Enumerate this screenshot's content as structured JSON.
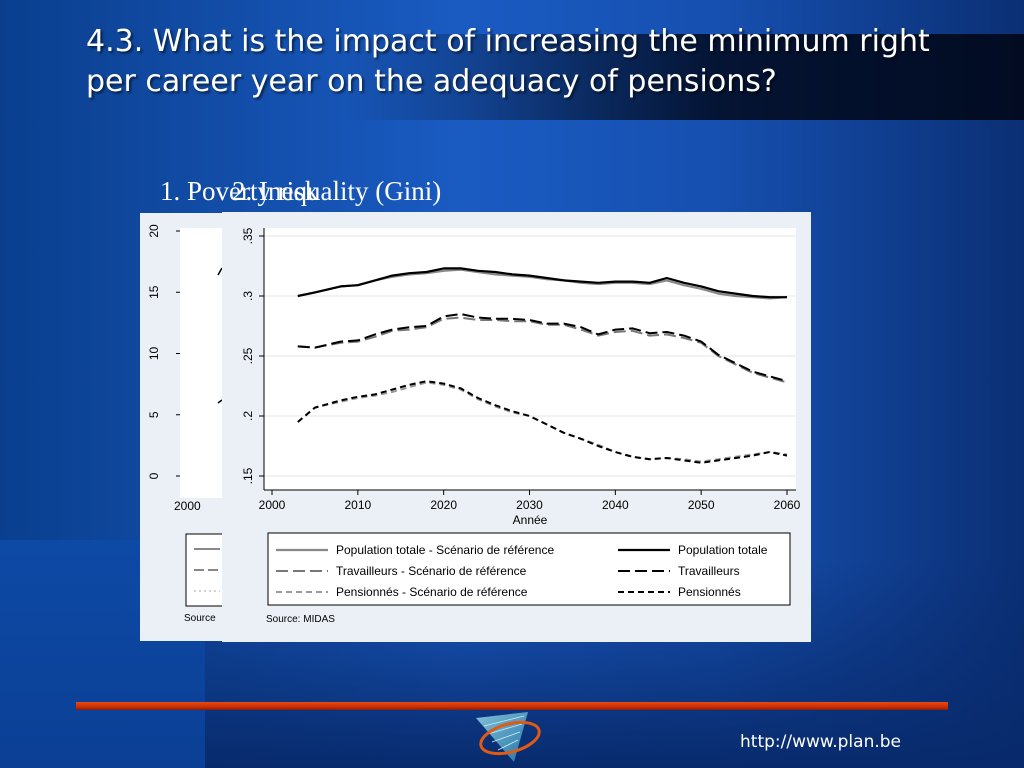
{
  "slide": {
    "title": "4.3. What is the impact of increasing the minimum right per career year on the adequacy of pensions?",
    "subtitle_1": "1. Poverty risk",
    "subtitle_2": "2. Inequality (Gini)",
    "url": "http://www.plan.be",
    "accent_color": "#d63a0c",
    "background_color": "#1650b0"
  },
  "chart_data": [
    {
      "type": "line",
      "title": "1. Poverty risk",
      "y_ticks": [
        "0",
        "5",
        "10",
        "15",
        "20"
      ],
      "ylim": [
        0,
        20
      ],
      "x_ticks": [
        "2000"
      ],
      "source": "Source"
    },
    {
      "type": "line",
      "title": "2. Inequality (Gini)",
      "xlabel": "Année",
      "ylabel": "",
      "xlim": [
        2000,
        2060
      ],
      "ylim": [
        0.15,
        0.35
      ],
      "x_ticks": [
        "2000",
        "2010",
        "2020",
        "2030",
        "2040",
        "2050",
        "2060"
      ],
      "y_ticks": [
        ".15",
        ".2",
        ".25",
        ".3",
        ".35"
      ],
      "y_tick_values": [
        0.15,
        0.2,
        0.25,
        0.3,
        0.35
      ],
      "grid": true,
      "legend_position": "bottom",
      "source": "Source: MIDAS",
      "x": [
        2003,
        2005,
        2008,
        2010,
        2012,
        2014,
        2016,
        2018,
        2020,
        2022,
        2024,
        2026,
        2028,
        2030,
        2032,
        2034,
        2036,
        2038,
        2040,
        2042,
        2044,
        2046,
        2048,
        2050,
        2052,
        2054,
        2056,
        2058,
        2060
      ],
      "series": [
        {
          "name": "Population totale - Scénario de référence",
          "color": "#888888",
          "dash": "",
          "width": 2.2,
          "values": [
            0.3,
            0.303,
            0.308,
            0.309,
            0.313,
            0.316,
            0.318,
            0.319,
            0.321,
            0.322,
            0.32,
            0.318,
            0.317,
            0.316,
            0.314,
            0.313,
            0.311,
            0.31,
            0.311,
            0.311,
            0.31,
            0.313,
            0.309,
            0.306,
            0.302,
            0.3,
            0.299,
            0.298,
            0.299
          ]
        },
        {
          "name": "Population totale",
          "color": "#000000",
          "dash": "",
          "width": 2.2,
          "values": [
            0.3,
            0.303,
            0.308,
            0.309,
            0.313,
            0.317,
            0.319,
            0.32,
            0.323,
            0.323,
            0.321,
            0.32,
            0.318,
            0.317,
            0.315,
            0.313,
            0.312,
            0.311,
            0.312,
            0.312,
            0.311,
            0.315,
            0.311,
            0.308,
            0.304,
            0.302,
            0.3,
            0.299,
            0.299
          ]
        },
        {
          "name": "Travailleurs - Scénario de référence",
          "color": "#777777",
          "dash": "12 5",
          "width": 2,
          "values": [
            0.258,
            0.257,
            0.261,
            0.262,
            0.266,
            0.271,
            0.272,
            0.274,
            0.281,
            0.282,
            0.28,
            0.28,
            0.279,
            0.279,
            0.276,
            0.276,
            0.272,
            0.267,
            0.27,
            0.271,
            0.267,
            0.268,
            0.265,
            0.261,
            0.25,
            0.243,
            0.236,
            0.232,
            0.228
          ]
        },
        {
          "name": "Travailleurs",
          "color": "#000000",
          "dash": "12 5",
          "width": 2,
          "values": [
            0.258,
            0.257,
            0.262,
            0.263,
            0.268,
            0.272,
            0.274,
            0.275,
            0.283,
            0.285,
            0.282,
            0.281,
            0.281,
            0.28,
            0.277,
            0.277,
            0.274,
            0.268,
            0.272,
            0.273,
            0.269,
            0.27,
            0.267,
            0.262,
            0.251,
            0.244,
            0.237,
            0.233,
            0.229
          ]
        },
        {
          "name": "Pensionnés - Scénario de référence",
          "color": "#999999",
          "dash": "6 4",
          "width": 2,
          "values": [
            0.195,
            0.207,
            0.212,
            0.215,
            0.217,
            0.22,
            0.224,
            0.228,
            0.226,
            0.222,
            0.214,
            0.208,
            0.203,
            0.2,
            0.193,
            0.186,
            0.181,
            0.176,
            0.17,
            0.166,
            0.164,
            0.165,
            0.164,
            0.162,
            0.164,
            0.166,
            0.168,
            0.17,
            0.168
          ]
        },
        {
          "name": "Pensionnés",
          "color": "#000000",
          "dash": "6 4",
          "width": 2,
          "values": [
            0.195,
            0.207,
            0.213,
            0.216,
            0.218,
            0.222,
            0.226,
            0.229,
            0.227,
            0.223,
            0.215,
            0.209,
            0.204,
            0.2,
            0.193,
            0.186,
            0.181,
            0.175,
            0.17,
            0.166,
            0.164,
            0.165,
            0.163,
            0.161,
            0.163,
            0.165,
            0.167,
            0.17,
            0.167
          ]
        }
      ]
    }
  ]
}
